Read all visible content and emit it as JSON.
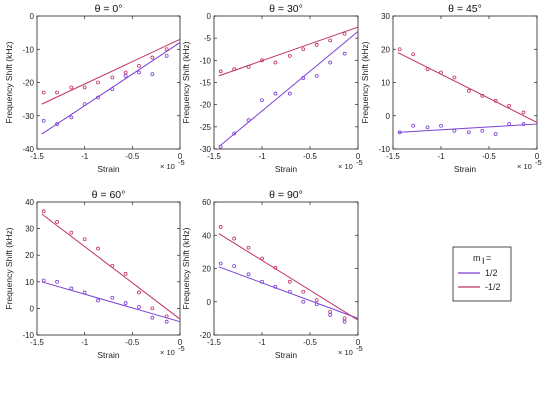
{
  "figure": {
    "legend": {
      "title": "m",
      "title_sub": "I",
      "title_suffix": "=",
      "entries": [
        {
          "label": "1/2",
          "color": "#7b3fd4"
        },
        {
          "label": "-1/2",
          "color": "#c0306a"
        }
      ]
    }
  },
  "chart_data": [
    {
      "type": "scatter",
      "title": "θ = 0°",
      "xlabel": "Strain",
      "ylabel": "Frequency Shift (kHz)",
      "x_multiplier": "× 10",
      "x_multiplier_exp": "-5",
      "xlim": [
        -1.5,
        0
      ],
      "ylim": [
        -40,
        0
      ],
      "xticks": [
        -1.5,
        -1,
        -0.5,
        0
      ],
      "xtick_labels": [
        "-1.5",
        "-1",
        "-0.5",
        "0"
      ],
      "yticks": [
        -40,
        -30,
        -20,
        -10,
        0
      ],
      "ytick_labels": [
        "-40",
        "-30",
        "-20",
        "-10",
        "0"
      ],
      "series": [
        {
          "color": "#7b3fd4",
          "x": [
            -1.43,
            -1.29,
            -1.14,
            -1.0,
            -0.86,
            -0.71,
            -0.57,
            -0.43,
            -0.29,
            -0.14
          ],
          "y": [
            -31.5,
            -32.5,
            -30.5,
            -26.5,
            -24.5,
            -22,
            -18,
            -17,
            -17.5,
            -12
          ],
          "fit": [
            [
              -1.45,
              -35.5
            ],
            [
              0,
              -8
            ]
          ]
        },
        {
          "color": "#c0306a",
          "x": [
            -1.43,
            -1.29,
            -1.14,
            -1.0,
            -0.86,
            -0.71,
            -0.57,
            -0.43,
            -0.29,
            -0.14
          ],
          "y": [
            -23,
            -23,
            -21.5,
            -21.5,
            -20,
            -18.5,
            -17,
            -15,
            -12.5,
            -10
          ],
          "fit": [
            [
              -1.45,
              -26.5
            ],
            [
              0,
              -7
            ]
          ]
        }
      ]
    },
    {
      "type": "scatter",
      "title": "θ = 30°",
      "xlabel": "Strain",
      "ylabel": "Frequency Shift (kHz)",
      "x_multiplier": "× 10",
      "x_multiplier_exp": "-5",
      "xlim": [
        -1.5,
        0
      ],
      "ylim": [
        -30,
        0
      ],
      "xticks": [
        -1.5,
        -1,
        -0.5,
        0
      ],
      "xtick_labels": [
        "-1.5",
        "-1",
        "-0.5",
        "0"
      ],
      "yticks": [
        -30,
        -25,
        -20,
        -15,
        -10,
        -5,
        0
      ],
      "ytick_labels": [
        "-30",
        "-25",
        "-20",
        "-15",
        "-10",
        "-5",
        "0"
      ],
      "series": [
        {
          "color": "#7b3fd4",
          "x": [
            -1.43,
            -1.29,
            -1.14,
            -1.0,
            -0.86,
            -0.71,
            -0.57,
            -0.43,
            -0.29,
            -0.14
          ],
          "y": [
            -29.5,
            -26.5,
            -23.5,
            -19,
            -17.5,
            -17.5,
            -14,
            -13.5,
            -10.5,
            -8.5
          ],
          "fit": [
            [
              -1.45,
              -29.5
            ],
            [
              0,
              -3.5
            ]
          ]
        },
        {
          "color": "#c0306a",
          "x": [
            -1.43,
            -1.29,
            -1.14,
            -1.0,
            -0.86,
            -0.71,
            -0.57,
            -0.43,
            -0.29,
            -0.14
          ],
          "y": [
            -12.5,
            -12,
            -11.5,
            -10,
            -10.5,
            -9,
            -7.5,
            -6.5,
            -5.5,
            -4
          ],
          "fit": [
            [
              -1.45,
              -13.5
            ],
            [
              0,
              -2.5
            ]
          ]
        }
      ]
    },
    {
      "type": "scatter",
      "title": "θ = 45°",
      "xlabel": "Strain",
      "ylabel": "Frequency Shift (kHz)",
      "x_multiplier": "× 10",
      "x_multiplier_exp": "-5",
      "xlim": [
        -1.5,
        0
      ],
      "ylim": [
        -10,
        30
      ],
      "xticks": [
        -1.5,
        -1,
        -0.5,
        0
      ],
      "xtick_labels": [
        "-1.5",
        "-1",
        "-0.5",
        "0"
      ],
      "yticks": [
        -10,
        0,
        10,
        20,
        30
      ],
      "ytick_labels": [
        "-10",
        "0",
        "10",
        "20",
        "30"
      ],
      "series": [
        {
          "color": "#7b3fd4",
          "x": [
            -1.43,
            -1.29,
            -1.14,
            -1.0,
            -0.86,
            -0.71,
            -0.57,
            -0.43,
            -0.29,
            -0.14
          ],
          "y": [
            -5,
            -3,
            -3.5,
            -3,
            -4.5,
            -5,
            -4.5,
            -5.5,
            -2.5,
            -2.5
          ],
          "fit": [
            [
              -1.45,
              -5
            ],
            [
              0,
              -2.5
            ]
          ]
        },
        {
          "color": "#c0306a",
          "x": [
            -1.43,
            -1.29,
            -1.14,
            -1.0,
            -0.86,
            -0.71,
            -0.57,
            -0.43,
            -0.29,
            -0.14
          ],
          "y": [
            20,
            18.5,
            14,
            13,
            11.5,
            7.5,
            6,
            4.5,
            3,
            1
          ],
          "fit": [
            [
              -1.45,
              19
            ],
            [
              0,
              -2
            ]
          ]
        }
      ]
    },
    {
      "type": "scatter",
      "title": "θ = 60°",
      "xlabel": "Strain",
      "ylabel": "Frequency Shift (kHz)",
      "x_multiplier": "× 10",
      "x_multiplier_exp": "-5",
      "xlim": [
        -1.5,
        0
      ],
      "ylim": [
        -10,
        40
      ],
      "xticks": [
        -1.5,
        -1,
        -0.5,
        0
      ],
      "xtick_labels": [
        "-1.5",
        "-1",
        "-0.5",
        "0"
      ],
      "yticks": [
        -10,
        0,
        10,
        20,
        30,
        40
      ],
      "ytick_labels": [
        "-10",
        "0",
        "10",
        "20",
        "30",
        "40"
      ],
      "series": [
        {
          "color": "#7b3fd4",
          "x": [
            -1.43,
            -1.29,
            -1.14,
            -1.0,
            -0.86,
            -0.71,
            -0.57,
            -0.43,
            -0.29,
            -0.14
          ],
          "y": [
            10.5,
            10,
            7.5,
            6,
            3,
            4,
            2,
            0.5,
            -3.5,
            -5
          ],
          "fit": [
            [
              -1.45,
              10
            ],
            [
              0,
              -5
            ]
          ]
        },
        {
          "color": "#c0306a",
          "x": [
            -1.43,
            -1.29,
            -1.14,
            -1.0,
            -0.86,
            -0.71,
            -0.57,
            -0.43,
            -0.29,
            -0.14
          ],
          "y": [
            36.5,
            32.5,
            28.5,
            26,
            22.5,
            16,
            13,
            6,
            0,
            -3
          ],
          "fit": [
            [
              -1.45,
              35.5
            ],
            [
              0,
              -4
            ]
          ]
        }
      ]
    },
    {
      "type": "scatter",
      "title": "θ = 90°",
      "xlabel": "Strain",
      "ylabel": "Frequency Shift (kHz)",
      "x_multiplier": "× 10",
      "x_multiplier_exp": "-5",
      "xlim": [
        -1.5,
        0
      ],
      "ylim": [
        -20,
        60
      ],
      "xticks": [
        -1.5,
        -1,
        -0.5,
        0
      ],
      "xtick_labels": [
        "-1.5",
        "-1",
        "-0.5",
        "0"
      ],
      "yticks": [
        -20,
        0,
        20,
        40,
        60
      ],
      "ytick_labels": [
        "-20",
        "0",
        "20",
        "40",
        "60"
      ],
      "series": [
        {
          "color": "#7b3fd4",
          "x": [
            -1.43,
            -1.29,
            -1.14,
            -1.0,
            -0.86,
            -0.71,
            -0.57,
            -0.43,
            -0.29,
            -0.14
          ],
          "y": [
            23,
            21.5,
            16.5,
            12,
            9,
            6,
            0,
            -1.5,
            -8,
            -12
          ],
          "fit": [
            [
              -1.45,
              21
            ],
            [
              0,
              -10
            ]
          ]
        },
        {
          "color": "#c0306a",
          "x": [
            -1.43,
            -1.29,
            -1.14,
            -1.0,
            -0.86,
            -0.71,
            -0.57,
            -0.43,
            -0.29,
            -0.14
          ],
          "y": [
            45,
            38,
            32.5,
            26,
            20.5,
            12,
            6,
            1,
            -6,
            -10
          ],
          "fit": [
            [
              -1.45,
              41
            ],
            [
              0,
              -11
            ]
          ]
        }
      ]
    }
  ]
}
